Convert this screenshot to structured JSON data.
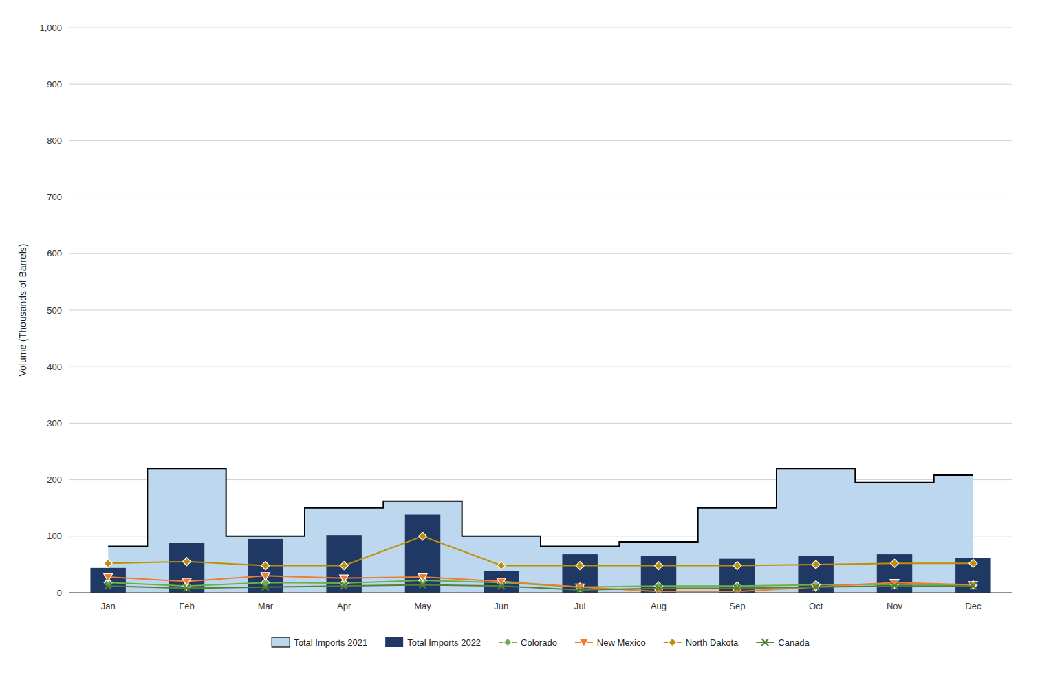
{
  "chart_data": {
    "type": "combo",
    "ylabel": "Volume (Thousands of Barrels)",
    "categories": [
      "Jan",
      "Feb",
      "Mar",
      "Apr",
      "May",
      "Jun",
      "Jul",
      "Aug",
      "Sep",
      "Oct",
      "Nov",
      "Dec"
    ],
    "series": [
      {
        "name": "Total Imports 2021",
        "type": "area",
        "line_style": "step",
        "color": "#bdd7ee",
        "values": [
          82,
          220,
          100,
          150,
          162,
          100,
          82,
          90,
          150,
          220,
          195,
          208
        ]
      },
      {
        "name": "Total Imports 2022",
        "type": "bar",
        "color": "#1f3864",
        "values": [
          44,
          88,
          95,
          102,
          138,
          38,
          68,
          65,
          60,
          65,
          68,
          62
        ]
      },
      {
        "name": "Colorado",
        "type": "line",
        "marker": "diamond",
        "color": "#70ad47",
        "values": [
          18,
          12,
          18,
          17,
          22,
          18,
          10,
          12,
          12,
          14,
          15,
          14
        ]
      },
      {
        "name": "New Mexico",
        "type": "line",
        "marker": "triangle-down",
        "color": "#ed7d31",
        "values": [
          28,
          20,
          30,
          26,
          28,
          20,
          10,
          2,
          2,
          10,
          18,
          14
        ]
      },
      {
        "name": "North Dakota",
        "type": "line",
        "marker": "diamond",
        "color": "#bf8f00",
        "values": [
          52,
          55,
          48,
          48,
          100,
          48,
          48,
          48,
          48,
          50,
          52,
          52
        ]
      },
      {
        "name": "Canada",
        "type": "line",
        "marker": "x",
        "color": "#548235",
        "values": [
          12,
          8,
          10,
          12,
          14,
          12,
          5,
          8,
          8,
          10,
          12,
          12
        ]
      }
    ],
    "ylim": [
      0,
      1000
    ],
    "yticks": [
      0,
      100,
      200,
      300,
      400,
      500,
      600,
      700,
      800,
      900,
      {
        "value": 1000,
        "label": "1,000"
      }
    ],
    "grid": true,
    "legend": "bottom"
  }
}
